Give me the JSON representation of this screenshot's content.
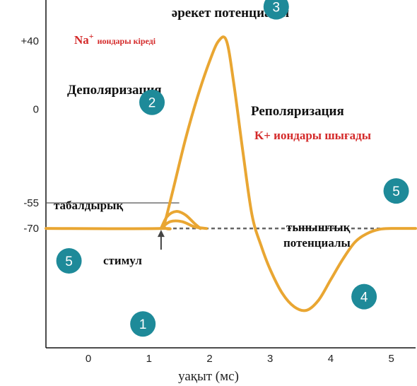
{
  "chart_data": {
    "type": "line",
    "title": "әрекет потенциалы",
    "xlabel": "уақыт (мс)",
    "ylabel": "",
    "xlim": [
      -0.7,
      5.4
    ],
    "ylim": [
      -140,
      64
    ],
    "x_ticks": [
      0,
      1,
      2,
      3,
      4,
      5
    ],
    "y_ticks": [
      {
        "value": 40,
        "label": "+40"
      },
      {
        "value": 0,
        "label": "0"
      },
      {
        "value": -55,
        "label": "-55"
      },
      {
        "value": -70,
        "label": "-70"
      }
    ],
    "resting_potential": -70,
    "threshold": -55,
    "stimulus_time": 1.2,
    "series": [
      {
        "role": "action-potential",
        "color": "#e9a632",
        "points": [
          [
            -0.7,
            -70
          ],
          [
            1.2,
            -70
          ],
          [
            1.25,
            -68
          ],
          [
            1.4,
            -47
          ],
          [
            1.6,
            -18
          ],
          [
            1.8,
            7
          ],
          [
            2.0,
            28
          ],
          [
            2.15,
            40
          ],
          [
            2.28,
            40
          ],
          [
            2.4,
            15
          ],
          [
            2.55,
            -25
          ],
          [
            2.7,
            -62
          ],
          [
            2.85,
            -80
          ],
          [
            3.0,
            -94
          ],
          [
            3.2,
            -108
          ],
          [
            3.4,
            -116
          ],
          [
            3.6,
            -118
          ],
          [
            3.8,
            -112
          ],
          [
            4.0,
            -100
          ],
          [
            4.2,
            -88
          ],
          [
            4.4,
            -78
          ],
          [
            4.6,
            -73
          ],
          [
            4.8,
            -70.5
          ],
          [
            5.0,
            -70
          ],
          [
            5.4,
            -70
          ]
        ]
      },
      {
        "role": "failed-initiation-1",
        "color": "#e9a632",
        "points": [
          [
            1.2,
            -70
          ],
          [
            1.3,
            -63
          ],
          [
            1.45,
            -60
          ],
          [
            1.6,
            -62
          ],
          [
            1.75,
            -67
          ],
          [
            1.85,
            -70
          ]
        ]
      },
      {
        "role": "failed-initiation-2",
        "color": "#e9a632",
        "points": [
          [
            1.2,
            -70
          ],
          [
            1.35,
            -66
          ],
          [
            1.55,
            -66
          ],
          [
            1.75,
            -69
          ],
          [
            1.95,
            -70
          ]
        ]
      }
    ],
    "annotations": [
      {
        "role": "title",
        "text": "әрекет потенциалы"
      },
      {
        "role": "na-ion",
        "text": "Na",
        "sup": "+",
        "text2": "иондары кіреді"
      },
      {
        "role": "depolarization",
        "text": "Деполяризация"
      },
      {
        "role": "repolarization",
        "text": "Реполяризация"
      },
      {
        "role": "k-ion",
        "text": "K+ иондары шығады"
      },
      {
        "role": "threshold",
        "text": "табалдырық"
      },
      {
        "role": "resting-line1",
        "text": "тыныштық"
      },
      {
        "role": "resting-line2",
        "text": "потенциалы"
      },
      {
        "role": "stimulus",
        "text": "стимул"
      }
    ],
    "badges": [
      {
        "label": "1",
        "x": 0.9,
        "y": -126
      },
      {
        "label": "2",
        "x": 1.05,
        "y": 4
      },
      {
        "label": "3",
        "x": 3.1,
        "y": 60
      },
      {
        "label": "4",
        "x": 4.55,
        "y": -110
      },
      {
        "label": "5",
        "x": -0.32,
        "y": -89
      },
      {
        "label": "5",
        "x": 5.08,
        "y": -48
      }
    ],
    "colors": {
      "curve": "#e9a632",
      "badge": "#1e8a99",
      "red_text": "#d42a2a",
      "resting_line": "#666666"
    }
  }
}
